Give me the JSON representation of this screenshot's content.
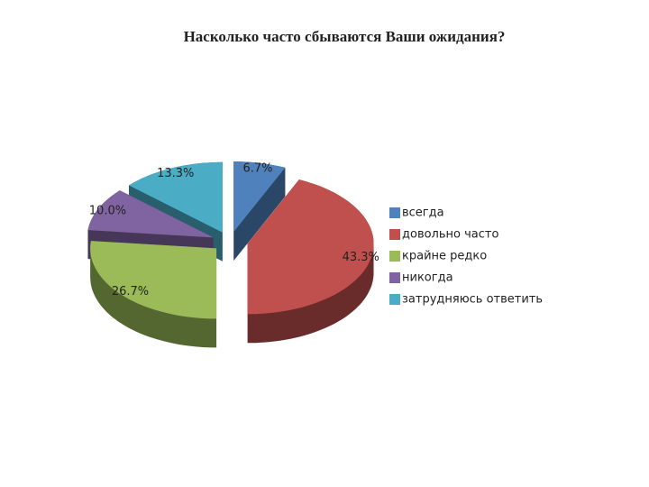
{
  "chart_data": {
    "type": "pie3d",
    "title": "Насколько часто сбываются Ваши ожидания?",
    "categories": [
      "всегда",
      "довольно часто",
      "крайне редко",
      "никогда",
      "затрудняюсь ответить"
    ],
    "values": [
      6.7,
      43.3,
      26.7,
      10.0,
      13.3
    ],
    "value_labels": [
      "6.7%",
      "43.3%",
      "26.7%",
      "10.0%",
      "13.3%"
    ],
    "colors": [
      "#4f81bd",
      "#c0504d",
      "#9bbb59",
      "#8064a2",
      "#4bacc6"
    ],
    "legend": "right"
  }
}
